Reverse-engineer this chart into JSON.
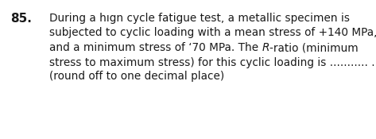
{
  "number": "85.",
  "line1": "During a hıgn cycle fatigue test, a metallic specimen is",
  "line2": "subjected to cyclic loading with a mean stress of +140 MPa,",
  "line3_pre": "and a minimum stress of ‘70 MPa. The ",
  "line3_italic": "R",
  "line3_post": "-ratio (minimum",
  "line4": "stress to maximum stress) for this cyclic loading is ........... .",
  "line5": "(round off to one decimal place)",
  "bg_color": "#ffffff",
  "text_color": "#1a1a1a",
  "font_size": 9.8,
  "number_font_size": 11.0
}
